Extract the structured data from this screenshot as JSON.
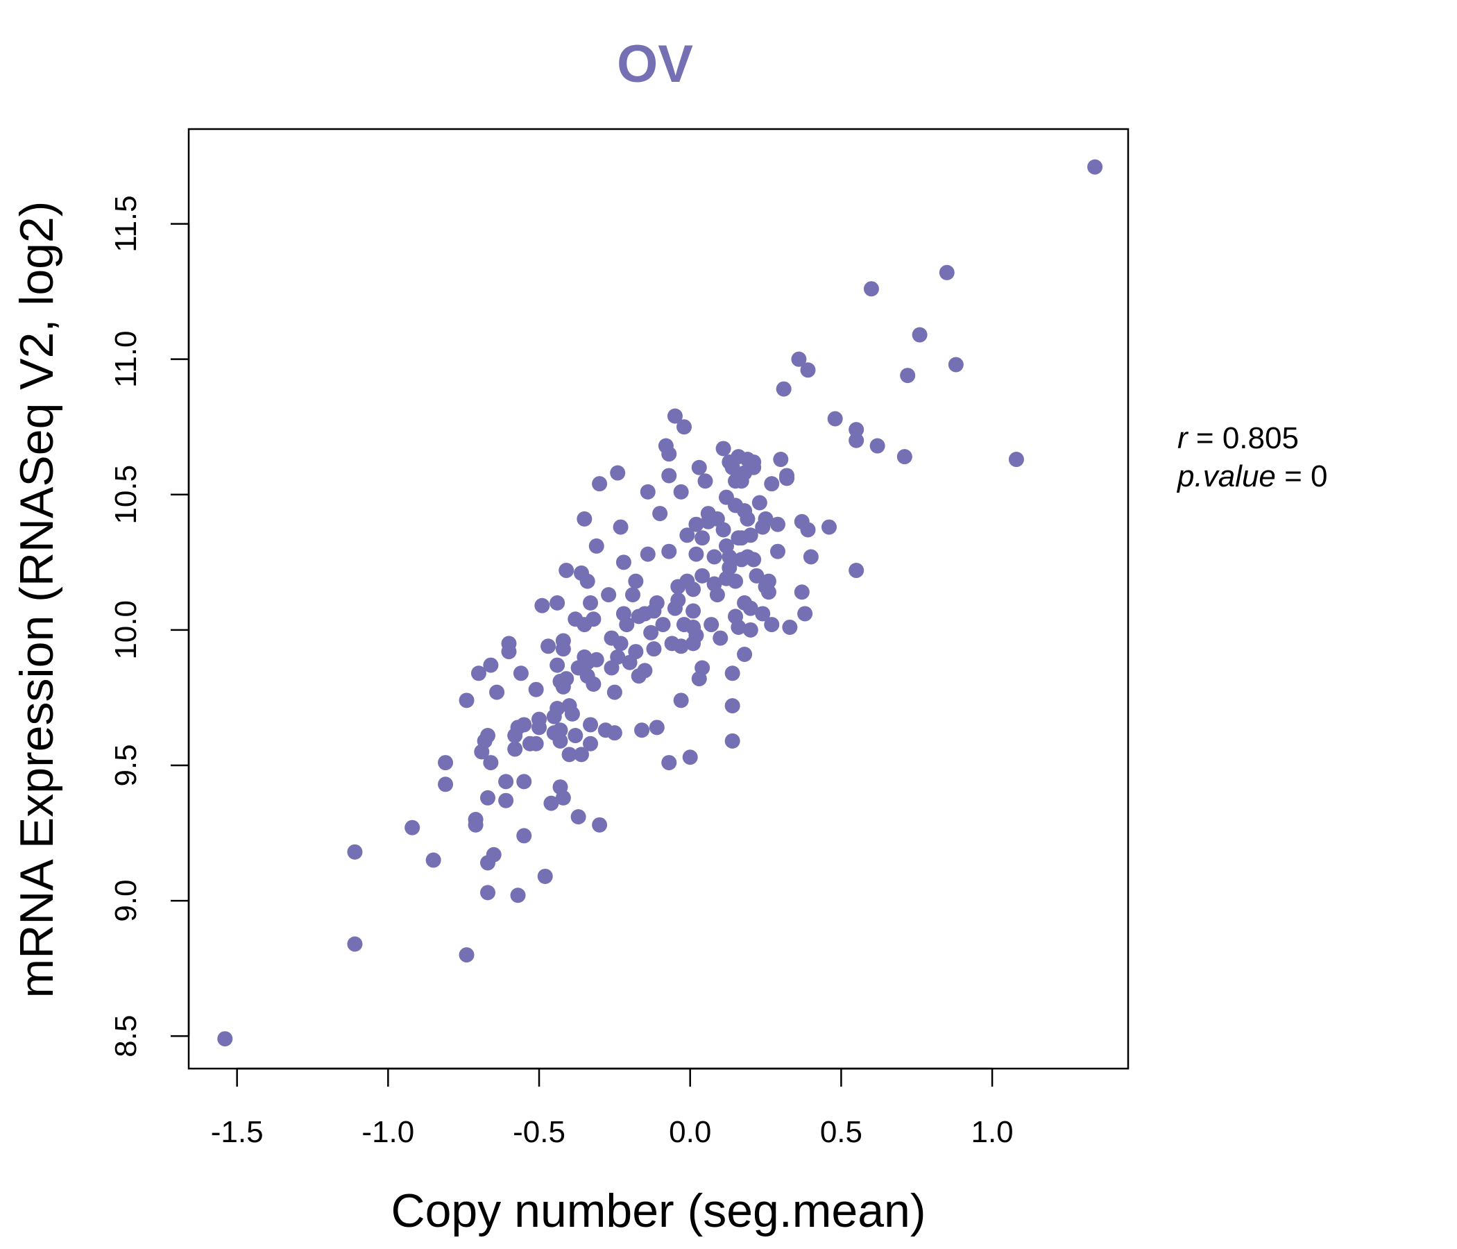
{
  "colors": {
    "point": "#7570b3",
    "title": "#7570b3",
    "axis": "#000000"
  },
  "chart_data": {
    "type": "scatter",
    "title": "OV",
    "xlabel": "Copy number (seg.mean)",
    "ylabel": "mRNA Expression (RNASeq V2, log2)",
    "xlim": [
      -1.66,
      1.45
    ],
    "ylim": [
      8.38,
      11.85
    ],
    "xticks": [
      -1.5,
      -1.0,
      -0.5,
      0.0,
      0.5,
      1.0
    ],
    "xtick_labels": [
      "-1.5",
      "-1.0",
      "-0.5",
      "0.0",
      "0.5",
      "1.0"
    ],
    "yticks": [
      8.5,
      9.0,
      9.5,
      10.0,
      10.5,
      11.0,
      11.5
    ],
    "ytick_labels": [
      "8.5",
      "9.0",
      "9.5",
      "10.0",
      "10.5",
      "11.0",
      "11.5"
    ],
    "stats": {
      "r_label": "r",
      "r_value": "0.805",
      "p_label": "p.value",
      "p_value": "0"
    },
    "points": [
      [
        -1.54,
        8.49
      ],
      [
        -1.11,
        8.84
      ],
      [
        -1.11,
        9.18
      ],
      [
        -0.92,
        9.27
      ],
      [
        -0.85,
        9.15
      ],
      [
        -0.81,
        9.43
      ],
      [
        -0.81,
        9.51
      ],
      [
        -0.74,
        8.8
      ],
      [
        -0.74,
        9.74
      ],
      [
        -0.71,
        9.28
      ],
      [
        -0.71,
        9.3
      ],
      [
        -0.7,
        9.84
      ],
      [
        -0.69,
        9.55
      ],
      [
        -0.68,
        9.59
      ],
      [
        -0.67,
        9.61
      ],
      [
        -0.66,
        9.87
      ],
      [
        -0.66,
        9.51
      ],
      [
        -0.67,
        9.38
      ],
      [
        -0.67,
        9.14
      ],
      [
        -0.67,
        9.03
      ],
      [
        -0.65,
        9.17
      ],
      [
        -0.64,
        9.77
      ],
      [
        -0.61,
        9.44
      ],
      [
        -0.61,
        9.37
      ],
      [
        -0.6,
        9.92
      ],
      [
        -0.6,
        9.95
      ],
      [
        -0.58,
        9.56
      ],
      [
        -0.58,
        9.61
      ],
      [
        -0.57,
        9.64
      ],
      [
        -0.57,
        9.02
      ],
      [
        -0.56,
        9.84
      ],
      [
        -0.55,
        9.65
      ],
      [
        -0.55,
        9.24
      ],
      [
        -0.55,
        9.44
      ],
      [
        -0.53,
        9.58
      ],
      [
        -0.51,
        9.58
      ],
      [
        -0.51,
        9.78
      ],
      [
        -0.5,
        9.64
      ],
      [
        -0.5,
        9.67
      ],
      [
        -0.49,
        10.09
      ],
      [
        -0.48,
        9.09
      ],
      [
        -0.47,
        9.94
      ],
      [
        -0.46,
        9.36
      ],
      [
        -0.45,
        9.62
      ],
      [
        -0.45,
        9.68
      ],
      [
        -0.44,
        10.1
      ],
      [
        -0.44,
        9.87
      ],
      [
        -0.44,
        9.71
      ],
      [
        -0.43,
        9.59
      ],
      [
        -0.43,
        9.63
      ],
      [
        -0.43,
        9.42
      ],
      [
        -0.43,
        9.81
      ],
      [
        -0.42,
        9.93
      ],
      [
        -0.42,
        9.96
      ],
      [
        -0.42,
        9.38
      ],
      [
        -0.42,
        9.79
      ],
      [
        -0.41,
        10.22
      ],
      [
        -0.41,
        9.82
      ],
      [
        -0.4,
        9.54
      ],
      [
        -0.4,
        9.72
      ],
      [
        -0.39,
        9.69
      ],
      [
        -0.38,
        10.04
      ],
      [
        -0.38,
        9.61
      ],
      [
        -0.37,
        9.86
      ],
      [
        -0.37,
        9.31
      ],
      [
        -0.36,
        10.21
      ],
      [
        -0.36,
        9.54
      ],
      [
        -0.35,
        10.41
      ],
      [
        -0.35,
        10.02
      ],
      [
        -0.35,
        9.9
      ],
      [
        -0.34,
        10.18
      ],
      [
        -0.34,
        9.83
      ],
      [
        -0.34,
        9.88
      ],
      [
        -0.33,
        10.1
      ],
      [
        -0.33,
        9.65
      ],
      [
        -0.33,
        9.58
      ],
      [
        -0.32,
        10.04
      ],
      [
        -0.32,
        9.8
      ],
      [
        -0.31,
        10.31
      ],
      [
        -0.31,
        9.89
      ],
      [
        -0.3,
        10.54
      ],
      [
        -0.3,
        9.28
      ],
      [
        -0.28,
        9.63
      ],
      [
        -0.27,
        10.13
      ],
      [
        -0.26,
        9.97
      ],
      [
        -0.26,
        9.86
      ],
      [
        -0.25,
        9.77
      ],
      [
        -0.25,
        9.62
      ],
      [
        -0.24,
        10.58
      ],
      [
        -0.24,
        9.9
      ],
      [
        -0.23,
        10.38
      ],
      [
        -0.23,
        9.95
      ],
      [
        -0.22,
        10.25
      ],
      [
        -0.22,
        10.06
      ],
      [
        -0.21,
        10.02
      ],
      [
        -0.2,
        9.88
      ],
      [
        -0.19,
        10.13
      ],
      [
        -0.18,
        9.92
      ],
      [
        -0.18,
        10.18
      ],
      [
        -0.17,
        9.83
      ],
      [
        -0.17,
        10.05
      ],
      [
        -0.16,
        9.63
      ],
      [
        -0.15,
        10.06
      ],
      [
        -0.15,
        9.85
      ],
      [
        -0.14,
        10.28
      ],
      [
        -0.14,
        10.51
      ],
      [
        -0.13,
        9.99
      ],
      [
        -0.12,
        10.07
      ],
      [
        -0.12,
        9.93
      ],
      [
        -0.11,
        10.1
      ],
      [
        -0.11,
        9.64
      ],
      [
        -0.1,
        10.43
      ],
      [
        -0.09,
        10.02
      ],
      [
        -0.08,
        10.68
      ],
      [
        -0.07,
        10.57
      ],
      [
        -0.07,
        10.65
      ],
      [
        -0.07,
        10.29
      ],
      [
        -0.07,
        9.51
      ],
      [
        -0.06,
        9.95
      ],
      [
        -0.05,
        10.79
      ],
      [
        -0.05,
        10.08
      ],
      [
        -0.04,
        10.11
      ],
      [
        -0.04,
        10.16
      ],
      [
        -0.03,
        10.51
      ],
      [
        -0.03,
        9.74
      ],
      [
        -0.03,
        9.94
      ],
      [
        -0.02,
        10.02
      ],
      [
        -0.02,
        10.75
      ],
      [
        -0.01,
        10.18
      ],
      [
        -0.01,
        10.35
      ],
      [
        0.0,
        9.53
      ],
      [
        0.01,
        9.95
      ],
      [
        0.01,
        10.07
      ],
      [
        0.01,
        10.15
      ],
      [
        0.01,
        10.01
      ],
      [
        0.02,
        10.39
      ],
      [
        0.02,
        9.98
      ],
      [
        0.02,
        10.28
      ],
      [
        0.03,
        9.82
      ],
      [
        0.03,
        10.6
      ],
      [
        0.04,
        10.2
      ],
      [
        0.04,
        9.86
      ],
      [
        0.04,
        10.34
      ],
      [
        0.05,
        10.55
      ],
      [
        0.06,
        10.43
      ],
      [
        0.06,
        10.4
      ],
      [
        0.07,
        10.02
      ],
      [
        0.08,
        10.27
      ],
      [
        0.08,
        10.17
      ],
      [
        0.09,
        10.41
      ],
      [
        0.09,
        10.13
      ],
      [
        0.1,
        9.97
      ],
      [
        0.11,
        10.67
      ],
      [
        0.11,
        10.37
      ],
      [
        0.12,
        10.19
      ],
      [
        0.12,
        10.49
      ],
      [
        0.12,
        10.31
      ],
      [
        0.13,
        10.27
      ],
      [
        0.13,
        10.62
      ],
      [
        0.13,
        10.23
      ],
      [
        0.14,
        9.84
      ],
      [
        0.14,
        9.72
      ],
      [
        0.14,
        9.59
      ],
      [
        0.14,
        10.6
      ],
      [
        0.15,
        10.55
      ],
      [
        0.15,
        10.46
      ],
      [
        0.15,
        10.18
      ],
      [
        0.15,
        10.05
      ],
      [
        0.16,
        10.34
      ],
      [
        0.16,
        10.01
      ],
      [
        0.16,
        10.64
      ],
      [
        0.17,
        10.55
      ],
      [
        0.17,
        10.34
      ],
      [
        0.17,
        10.26
      ],
      [
        0.18,
        10.58
      ],
      [
        0.18,
        10.1
      ],
      [
        0.18,
        9.91
      ],
      [
        0.18,
        10.44
      ],
      [
        0.19,
        10.63
      ],
      [
        0.19,
        10.41
      ],
      [
        0.19,
        10.27
      ],
      [
        0.2,
        10.08
      ],
      [
        0.2,
        10.35
      ],
      [
        0.2,
        10.0
      ],
      [
        0.21,
        10.62
      ],
      [
        0.21,
        10.26
      ],
      [
        0.21,
        10.6
      ],
      [
        0.22,
        10.2
      ],
      [
        0.23,
        10.47
      ],
      [
        0.24,
        10.06
      ],
      [
        0.24,
        10.38
      ],
      [
        0.25,
        10.41
      ],
      [
        0.25,
        10.16
      ],
      [
        0.26,
        10.14
      ],
      [
        0.26,
        10.18
      ],
      [
        0.27,
        10.54
      ],
      [
        0.27,
        10.02
      ],
      [
        0.29,
        10.39
      ],
      [
        0.29,
        10.29
      ],
      [
        0.3,
        10.63
      ],
      [
        0.32,
        10.56
      ],
      [
        0.32,
        10.57
      ],
      [
        0.33,
        10.01
      ],
      [
        0.36,
        11.0
      ],
      [
        0.37,
        10.14
      ],
      [
        0.37,
        10.4
      ],
      [
        0.38,
        10.06
      ],
      [
        0.39,
        10.96
      ],
      [
        0.39,
        10.37
      ],
      [
        0.4,
        10.27
      ],
      [
        0.46,
        10.38
      ],
      [
        0.48,
        10.78
      ],
      [
        0.55,
        10.74
      ],
      [
        0.55,
        10.7
      ],
      [
        0.55,
        10.22
      ],
      [
        0.6,
        11.26
      ],
      [
        0.62,
        10.68
      ],
      [
        0.71,
        10.64
      ],
      [
        0.72,
        10.94
      ],
      [
        0.76,
        11.09
      ],
      [
        0.85,
        11.32
      ],
      [
        0.88,
        10.98
      ],
      [
        1.08,
        10.63
      ],
      [
        1.34,
        11.71
      ],
      [
        0.31,
        10.89
      ]
    ]
  }
}
